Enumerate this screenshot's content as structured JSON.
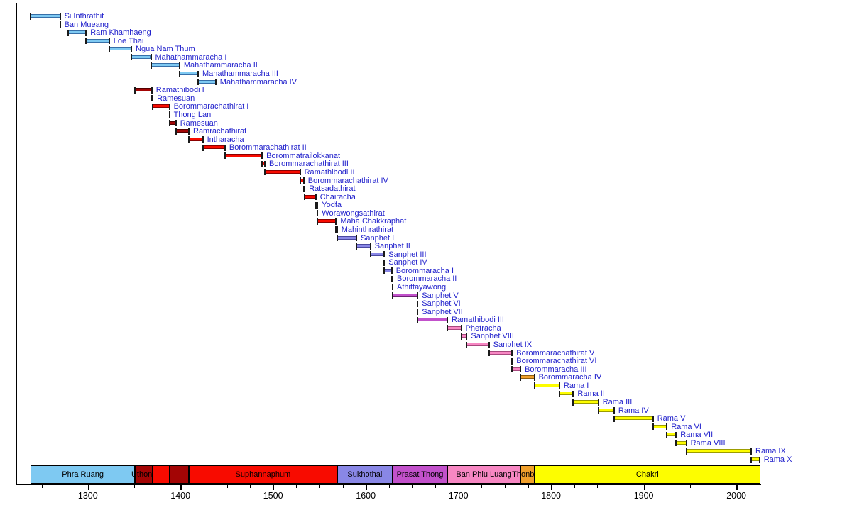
{
  "chart_data": {
    "type": "bar",
    "subtype": "gantt-timeline",
    "title": "",
    "xlabel": "",
    "ylabel": "",
    "x_axis": {
      "range": [
        1222,
        2026
      ],
      "major_ticks": [
        1300,
        1400,
        1500,
        1600,
        1700,
        1800,
        1900,
        2000
      ],
      "minor_tick_step": 25,
      "minor_tick_range": [
        1250,
        2000
      ],
      "grid": false
    },
    "monarch_label_color": "#2222CC",
    "band_label_color": "#000000",
    "axis_color": "#000000",
    "cap_color": "#1A1A1A",
    "dynasty_colors": {
      "phra_ruang": {
        "fill": "#7EC9F2",
        "border": "#366FA8"
      },
      "uthong": {
        "fill": "#A30505",
        "border": "#520000"
      },
      "suphannaphum": {
        "fill": "#F80B00",
        "border": "#8B0000"
      },
      "sukhothai": {
        "fill": "#8987E6",
        "border": "#4A48A0"
      },
      "prasat_thong": {
        "fill": "#C251CB",
        "border": "#6E2374"
      },
      "ban_phlu_luang": {
        "fill": "#F787C3",
        "border": "#A8487E"
      },
      "thonburi": {
        "fill": "#F0A02C",
        "border": "#905E0E"
      },
      "chakri": {
        "fill": "#FDFD00",
        "border": "#9C9C00"
      }
    },
    "monarchs": [
      {
        "label": "Si Inthrathit",
        "start": 1238,
        "end": 1270,
        "dynasty": "phra_ruang"
      },
      {
        "label": "Ban Mueang",
        "start": 1270,
        "end": 1270,
        "dynasty": "phra_ruang"
      },
      {
        "label": "Ram Khamhaeng",
        "start": 1279,
        "end": 1298,
        "dynasty": "phra_ruang"
      },
      {
        "label": "Loe Thai",
        "start": 1298,
        "end": 1323,
        "dynasty": "phra_ruang"
      },
      {
        "label": "Ngua Nam Thum",
        "start": 1323,
        "end": 1347,
        "dynasty": "phra_ruang"
      },
      {
        "label": "Mahathammaracha I",
        "start": 1347,
        "end": 1368,
        "dynasty": "phra_ruang"
      },
      {
        "label": "Mahathammaracha II",
        "start": 1368,
        "end": 1399,
        "dynasty": "phra_ruang"
      },
      {
        "label": "Mahathammaracha III",
        "start": 1399,
        "end": 1419,
        "dynasty": "phra_ruang"
      },
      {
        "label": "Mahathammaracha IV",
        "start": 1419,
        "end": 1438,
        "dynasty": "phra_ruang"
      },
      {
        "label": "Ramathibodi I",
        "start": 1351,
        "end": 1369,
        "dynasty": "uthong"
      },
      {
        "label": "Ramesuan",
        "start": 1369,
        "end": 1370,
        "dynasty": "uthong"
      },
      {
        "label": "Borommarachathirat I",
        "start": 1370,
        "end": 1388,
        "dynasty": "suphannaphum"
      },
      {
        "label": "Thong Lan",
        "start": 1388,
        "end": 1388,
        "dynasty": "suphannaphum"
      },
      {
        "label": "Ramesuan",
        "start": 1388,
        "end": 1395,
        "dynasty": "uthong"
      },
      {
        "label": "Ramrachathirat",
        "start": 1395,
        "end": 1409,
        "dynasty": "uthong"
      },
      {
        "label": "Intharacha",
        "start": 1409,
        "end": 1424,
        "dynasty": "suphannaphum"
      },
      {
        "label": "Borommarachathirat II",
        "start": 1424,
        "end": 1448,
        "dynasty": "suphannaphum"
      },
      {
        "label": "Borommatrailokkanat",
        "start": 1448,
        "end": 1488,
        "dynasty": "suphannaphum"
      },
      {
        "label": "Borommarachathirat III",
        "start": 1488,
        "end": 1491,
        "dynasty": "suphannaphum"
      },
      {
        "label": "Ramathibodi II",
        "start": 1491,
        "end": 1529,
        "dynasty": "suphannaphum"
      },
      {
        "label": "Borommarachathirat IV",
        "start": 1529,
        "end": 1533,
        "dynasty": "suphannaphum"
      },
      {
        "label": "Ratsadathirat",
        "start": 1533,
        "end": 1534,
        "dynasty": "suphannaphum"
      },
      {
        "label": "Chairacha",
        "start": 1534,
        "end": 1546,
        "dynasty": "suphannaphum"
      },
      {
        "label": "Yodfa",
        "start": 1546,
        "end": 1548,
        "dynasty": "suphannaphum"
      },
      {
        "label": "Worawongsathirat",
        "start": 1548,
        "end": 1548,
        "dynasty": "suphannaphum"
      },
      {
        "label": "Maha Chakkraphat",
        "start": 1548,
        "end": 1568,
        "dynasty": "suphannaphum"
      },
      {
        "label": "Mahinthrathirat",
        "start": 1568,
        "end": 1569,
        "dynasty": "suphannaphum"
      },
      {
        "label": "Sanphet I",
        "start": 1569,
        "end": 1590,
        "dynasty": "sukhothai"
      },
      {
        "label": "Sanphet II",
        "start": 1590,
        "end": 1605,
        "dynasty": "sukhothai"
      },
      {
        "label": "Sanphet III",
        "start": 1605,
        "end": 1620,
        "dynasty": "sukhothai"
      },
      {
        "label": "Sanphet IV",
        "start": 1620,
        "end": 1620,
        "dynasty": "sukhothai"
      },
      {
        "label": "Borommaracha I",
        "start": 1620,
        "end": 1628,
        "dynasty": "sukhothai"
      },
      {
        "label": "Borommaracha II",
        "start": 1628,
        "end": 1629,
        "dynasty": "sukhothai"
      },
      {
        "label": "Athittayawong",
        "start": 1629,
        "end": 1629,
        "dynasty": "sukhothai"
      },
      {
        "label": "Sanphet V",
        "start": 1629,
        "end": 1656,
        "dynasty": "prasat_thong"
      },
      {
        "label": "Sanphet VI",
        "start": 1656,
        "end": 1656,
        "dynasty": "prasat_thong"
      },
      {
        "label": "Sanphet VII",
        "start": 1656,
        "end": 1656,
        "dynasty": "prasat_thong"
      },
      {
        "label": "Ramathibodi III",
        "start": 1656,
        "end": 1688,
        "dynasty": "prasat_thong"
      },
      {
        "label": "Phetracha",
        "start": 1688,
        "end": 1703,
        "dynasty": "ban_phlu_luang"
      },
      {
        "label": "Sanphet VIII",
        "start": 1703,
        "end": 1709,
        "dynasty": "ban_phlu_luang"
      },
      {
        "label": "Sanphet IX",
        "start": 1709,
        "end": 1733,
        "dynasty": "ban_phlu_luang"
      },
      {
        "label": "Borommarachathirat V",
        "start": 1733,
        "end": 1758,
        "dynasty": "ban_phlu_luang"
      },
      {
        "label": "Borommarachathirat VI",
        "start": 1758,
        "end": 1758,
        "dynasty": "ban_phlu_luang"
      },
      {
        "label": "Borommaracha III",
        "start": 1758,
        "end": 1767,
        "dynasty": "ban_phlu_luang"
      },
      {
        "label": "Borommaracha IV",
        "start": 1767,
        "end": 1782,
        "dynasty": "thonburi"
      },
      {
        "label": "Rama I",
        "start": 1782,
        "end": 1809,
        "dynasty": "chakri"
      },
      {
        "label": "Rama II",
        "start": 1809,
        "end": 1824,
        "dynasty": "chakri"
      },
      {
        "label": "Rama III",
        "start": 1824,
        "end": 1851,
        "dynasty": "chakri"
      },
      {
        "label": "Rama IV",
        "start": 1851,
        "end": 1868,
        "dynasty": "chakri"
      },
      {
        "label": "Rama V",
        "start": 1868,
        "end": 1910,
        "dynasty": "chakri"
      },
      {
        "label": "Rama VI",
        "start": 1910,
        "end": 1925,
        "dynasty": "chakri"
      },
      {
        "label": "Rama VII",
        "start": 1925,
        "end": 1935,
        "dynasty": "chakri"
      },
      {
        "label": "Rama VIII",
        "start": 1935,
        "end": 1946,
        "dynasty": "chakri"
      },
      {
        "label": "Rama IX",
        "start": 1946,
        "end": 2016,
        "dynasty": "chakri"
      },
      {
        "label": "Rama X",
        "start": 2016,
        "end": 2025,
        "dynasty": "chakri"
      }
    ],
    "dynasty_bands": [
      {
        "label": "Phra Ruang",
        "start": 1238,
        "end": 1351,
        "dynasty": "phra_ruang"
      },
      {
        "label": "Uthong",
        "start": 1351,
        "end": 1370,
        "dynasty": "uthong"
      },
      {
        "label": "",
        "start": 1370,
        "end": 1388,
        "dynasty": "suphannaphum"
      },
      {
        "label": "",
        "start": 1388,
        "end": 1409,
        "dynasty": "uthong"
      },
      {
        "label": "Suphannaphum",
        "start": 1409,
        "end": 1569,
        "dynasty": "suphannaphum"
      },
      {
        "label": "Sukhothai",
        "start": 1569,
        "end": 1629,
        "dynasty": "sukhothai"
      },
      {
        "label": "Prasat Thong",
        "start": 1629,
        "end": 1688,
        "dynasty": "prasat_thong"
      },
      {
        "label": "Ban Phlu Luang",
        "start": 1688,
        "end": 1767,
        "dynasty": "ban_phlu_luang"
      },
      {
        "label": "Thonburi",
        "start": 1767,
        "end": 1782,
        "dynasty": "thonburi"
      },
      {
        "label": "Chakri",
        "start": 1782,
        "end": 2026,
        "dynasty": "chakri"
      }
    ]
  }
}
